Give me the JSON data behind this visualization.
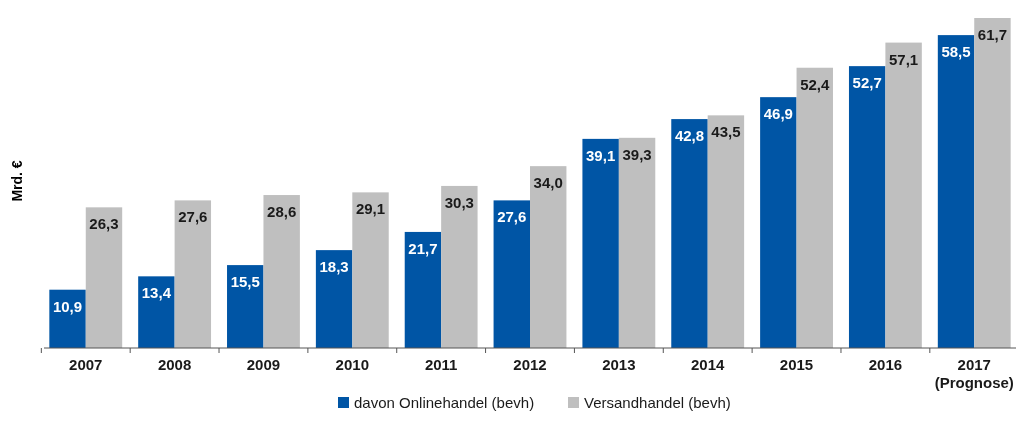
{
  "chart_data": {
    "type": "bar",
    "ylabel": "Mrd. €",
    "categories": [
      "2007",
      "2008",
      "2009",
      "2010",
      "2011",
      "2012",
      "2013",
      "2014",
      "2015",
      "2016",
      "2017\n(Prognose)"
    ],
    "series": [
      {
        "name": "davon Onlinehandel (bevh)",
        "color": "#0055a5",
        "values": [
          10.9,
          13.4,
          15.5,
          18.3,
          21.7,
          27.6,
          39.1,
          42.8,
          46.9,
          52.7,
          58.5
        ],
        "value_labels": [
          "10,9",
          "13,4",
          "15,5",
          "18,3",
          "21,7",
          "27,6",
          "39,1",
          "42,8",
          "46,9",
          "52,7",
          "58,5"
        ]
      },
      {
        "name": "Versandhandel (bevh)",
        "color": "#bfbfbf",
        "values": [
          26.3,
          27.6,
          28.6,
          29.1,
          30.3,
          34.0,
          39.3,
          43.5,
          52.4,
          57.1,
          61.7
        ],
        "value_labels": [
          "26,3",
          "27,6",
          "28,6",
          "29,1",
          "30,3",
          "34,0",
          "39,3",
          "43,5",
          "52,4",
          "57,1",
          "61,7"
        ]
      }
    ],
    "legend": "bottom"
  }
}
